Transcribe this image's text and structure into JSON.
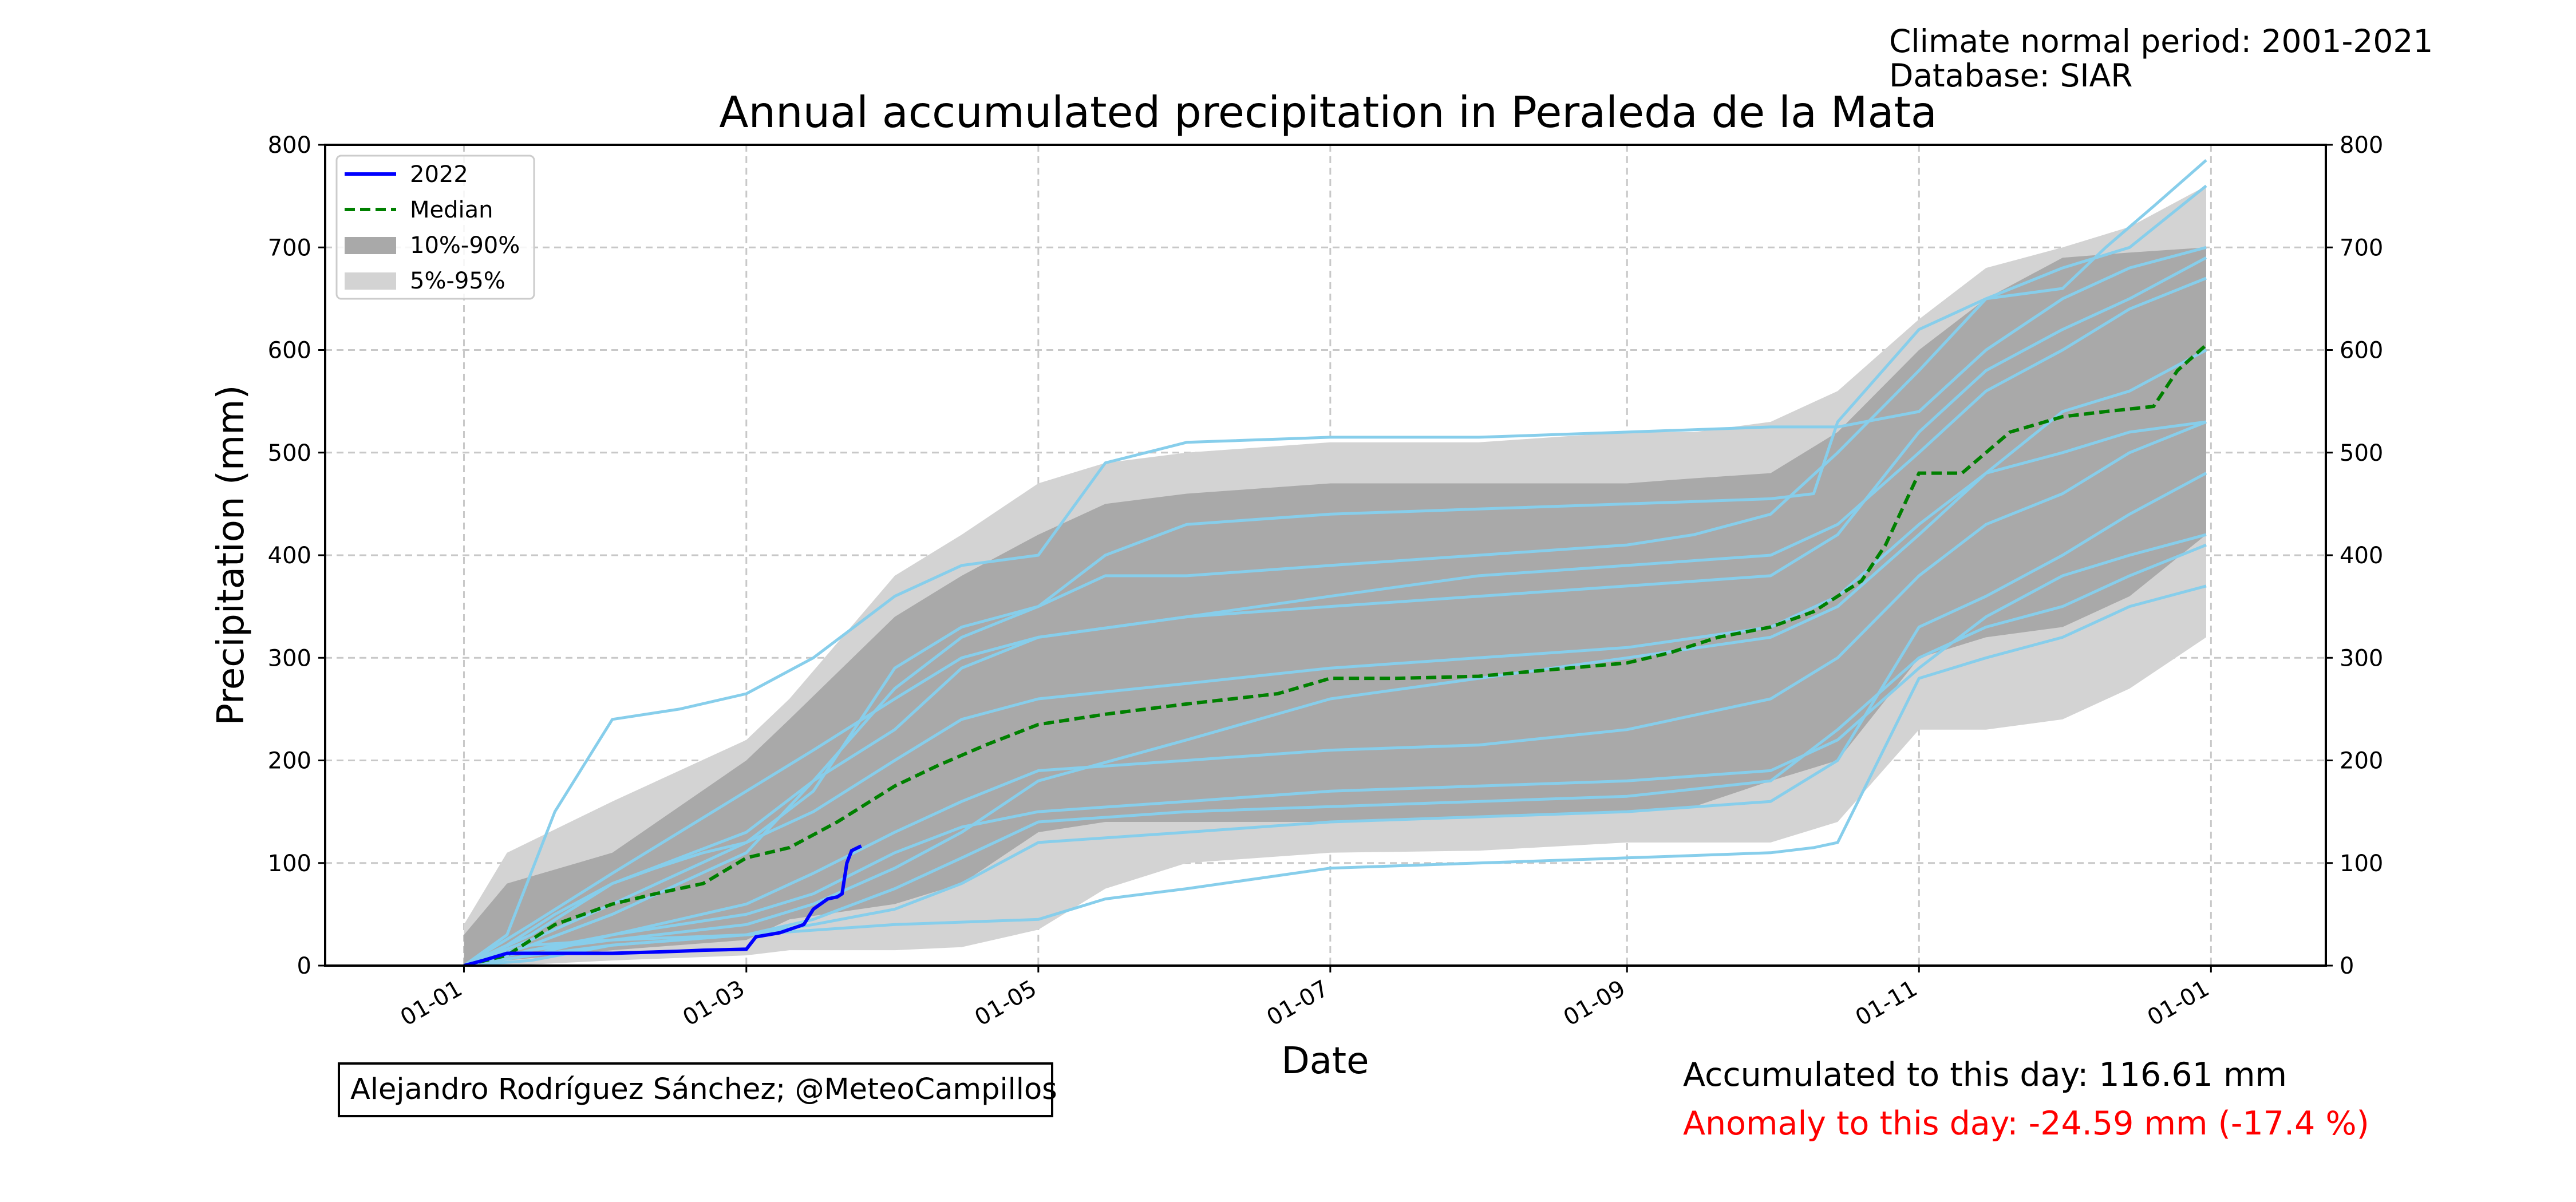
{
  "header": {
    "period": "Climate normal period: 2001-2021",
    "database": "Database: SIAR"
  },
  "credit": "Alejandro Rodríguez Sánchez; @MeteoCampillos",
  "stats": {
    "accumulated": "Accumulated to this day: 116.61 mm",
    "anomaly": "Anomaly to this day: -24.59 mm (-17.4 %)"
  },
  "colors": {
    "current_year": "#0000ff",
    "median": "#008000",
    "band_10_90": "#a9a9a9",
    "band_5_95": "#d3d3d3",
    "historical": "#87ceeb",
    "anomaly": "#ff0000",
    "grid": "#c8c8c8"
  },
  "chart_data": {
    "type": "line",
    "title": "Annual accumulated precipitation in Peraleda de la Mata",
    "xlabel": "Date",
    "ylabel": "Precipitation (mm)",
    "x_range": [
      "12-03",
      "01-25 (next year)"
    ],
    "x_ticks": [
      "01-01",
      "01-03",
      "01-05",
      "01-07",
      "01-09",
      "01-11",
      "01-01"
    ],
    "y_ticks": [
      0,
      100,
      200,
      300,
      400,
      500,
      600,
      700,
      800
    ],
    "ylim": [
      0,
      800
    ],
    "grid": true,
    "grid_style": "dashed",
    "secondary_y_axis": true,
    "legend_position": "upper-left",
    "legend": [
      {
        "label": "2022",
        "style": "line",
        "color": "#0000ff"
      },
      {
        "label": "Median",
        "style": "dashed",
        "color": "#008000"
      },
      {
        "label": "10%-90%",
        "style": "patch",
        "color": "#a9a9a9"
      },
      {
        "label": "5%-95%",
        "style": "patch",
        "color": "#d3d3d3"
      }
    ],
    "current_year": {
      "x": [
        "01-01",
        "01-05",
        "01-10",
        "02-01",
        "02-15",
        "02-20",
        "03-01",
        "03-03",
        "03-08",
        "03-13",
        "03-15",
        "03-18",
        "03-20",
        "03-21",
        "03-22",
        "03-23",
        "03-25"
      ],
      "y": [
        0,
        5,
        12,
        12,
        14,
        15,
        16,
        28,
        32,
        40,
        55,
        65,
        67,
        70,
        100,
        112,
        116.61
      ]
    },
    "median": {
      "x": [
        "01-01",
        "01-10",
        "01-20",
        "02-01",
        "02-10",
        "02-20",
        "03-01",
        "03-10",
        "03-20",
        "04-01",
        "04-10",
        "04-20",
        "05-01",
        "05-15",
        "06-01",
        "06-20",
        "07-01",
        "07-15",
        "08-01",
        "08-15",
        "09-01",
        "09-10",
        "09-20",
        "10-01",
        "10-10",
        "10-20",
        "10-25",
        "11-01",
        "11-10",
        "11-20",
        "12-01",
        "12-10",
        "12-20",
        "12-25",
        "12-31"
      ],
      "y": [
        0,
        10,
        40,
        60,
        70,
        80,
        105,
        115,
        140,
        175,
        195,
        215,
        235,
        245,
        255,
        265,
        280,
        280,
        282,
        288,
        295,
        305,
        320,
        330,
        345,
        375,
        410,
        480,
        480,
        520,
        535,
        540,
        545,
        580,
        605
      ]
    },
    "band_5_95": {
      "x": [
        "01-01",
        "01-10",
        "02-01",
        "03-01",
        "03-10",
        "04-01",
        "04-15",
        "05-01",
        "05-15",
        "06-01",
        "07-01",
        "08-01",
        "09-01",
        "09-15",
        "10-01",
        "10-15",
        "11-01",
        "11-15",
        "12-01",
        "12-15",
        "12-31"
      ],
      "lower": [
        0,
        0,
        5,
        10,
        15,
        15,
        18,
        35,
        75,
        100,
        110,
        112,
        120,
        120,
        120,
        140,
        230,
        230,
        240,
        270,
        320
      ],
      "upper": [
        40,
        110,
        160,
        220,
        260,
        380,
        420,
        470,
        490,
        500,
        510,
        510,
        520,
        520,
        530,
        560,
        630,
        680,
        700,
        720,
        760
      ]
    },
    "band_10_90": {
      "x": [
        "01-01",
        "01-10",
        "02-01",
        "03-01",
        "03-10",
        "04-01",
        "04-15",
        "05-01",
        "05-15",
        "06-01",
        "07-01",
        "08-01",
        "09-01",
        "09-15",
        "10-01",
        "10-15",
        "11-01",
        "11-15",
        "12-01",
        "12-15",
        "12-31"
      ],
      "lower": [
        2,
        5,
        15,
        25,
        45,
        60,
        80,
        130,
        140,
        140,
        140,
        145,
        150,
        155,
        180,
        200,
        300,
        320,
        330,
        360,
        420
      ],
      "upper": [
        30,
        80,
        110,
        200,
        240,
        340,
        380,
        420,
        450,
        460,
        470,
        470,
        470,
        475,
        480,
        520,
        600,
        650,
        690,
        695,
        700
      ]
    },
    "historical_years": [
      {
        "x": [
          "01-01",
          "01-10",
          "01-20",
          "02-01",
          "02-10",
          "02-20",
          "03-01",
          "03-15",
          "04-01",
          "04-15",
          "05-01",
          "05-15",
          "06-01",
          "07-01",
          "08-01",
          "09-01",
          "10-01",
          "10-10",
          "10-15",
          "11-01",
          "11-15",
          "12-01",
          "12-10",
          "12-20",
          "12-31"
        ],
        "y": [
          0,
          20,
          50,
          80,
          95,
          110,
          120,
          170,
          290,
          330,
          350,
          400,
          430,
          440,
          445,
          450,
          455,
          460,
          530,
          620,
          650,
          660,
          700,
          740,
          785
        ]
      },
      {
        "x": [
          "01-01",
          "01-10",
          "01-20",
          "02-01",
          "02-15",
          "03-01",
          "03-15",
          "04-01",
          "04-15",
          "05-01",
          "05-15",
          "06-01",
          "07-01",
          "08-01",
          "09-01",
          "10-01",
          "10-15",
          "11-01",
          "11-15",
          "12-01",
          "12-15",
          "12-31"
        ],
        "y": [
          0,
          30,
          150,
          240,
          250,
          265,
          300,
          360,
          390,
          400,
          490,
          510,
          515,
          515,
          520,
          525,
          525,
          540,
          600,
          650,
          680,
          700
        ]
      },
      {
        "x": [
          "01-01",
          "01-15",
          "02-01",
          "02-15",
          "03-01",
          "03-15",
          "04-01",
          "04-15",
          "05-01",
          "05-15",
          "06-01",
          "07-01",
          "08-01",
          "09-01",
          "09-15",
          "10-01",
          "10-15",
          "11-01",
          "11-15",
          "12-01",
          "12-15",
          "12-31"
        ],
        "y": [
          0,
          20,
          50,
          80,
          110,
          180,
          270,
          320,
          350,
          380,
          380,
          390,
          400,
          410,
          420,
          440,
          500,
          580,
          650,
          680,
          700,
          760
        ]
      },
      {
        "x": [
          "01-01",
          "01-15",
          "02-01",
          "03-01",
          "03-15",
          "04-01",
          "04-15",
          "05-01",
          "06-01",
          "07-01",
          "08-01",
          "09-01",
          "10-01",
          "10-15",
          "11-01",
          "11-15",
          "12-01",
          "12-15",
          "12-31"
        ],
        "y": [
          0,
          15,
          25,
          40,
          60,
          95,
          130,
          180,
          220,
          260,
          280,
          300,
          320,
          350,
          420,
          480,
          500,
          520,
          530
        ]
      },
      {
        "x": [
          "01-01",
          "01-15",
          "02-01",
          "03-01",
          "03-15",
          "04-01",
          "04-15",
          "05-01",
          "06-01",
          "07-01",
          "08-01",
          "09-01",
          "10-01",
          "10-15",
          "11-01",
          "11-15",
          "12-01",
          "12-15",
          "12-31"
        ],
        "y": [
          0,
          5,
          20,
          30,
          40,
          55,
          80,
          120,
          130,
          140,
          145,
          150,
          160,
          200,
          330,
          360,
          400,
          440,
          480
        ]
      },
      {
        "x": [
          "01-01",
          "01-15",
          "02-01",
          "03-01",
          "04-01",
          "05-01",
          "05-15",
          "06-01",
          "07-01",
          "08-01",
          "09-01",
          "10-01",
          "10-10",
          "10-15",
          "11-01",
          "11-15",
          "12-01",
          "12-15",
          "12-31"
        ],
        "y": [
          0,
          20,
          25,
          30,
          40,
          45,
          65,
          75,
          95,
          100,
          105,
          110,
          115,
          120,
          280,
          300,
          320,
          350,
          370
        ]
      },
      {
        "x": [
          "01-01",
          "01-15",
          "02-01",
          "03-01",
          "03-15",
          "04-01",
          "04-15",
          "05-01",
          "06-01",
          "07-01",
          "08-01",
          "09-01",
          "10-01",
          "10-15",
          "11-01",
          "11-15",
          "12-01",
          "12-15",
          "12-31"
        ],
        "y": [
          0,
          25,
          60,
          120,
          150,
          200,
          240,
          260,
          275,
          290,
          300,
          310,
          330,
          360,
          430,
          480,
          540,
          560,
          600
        ]
      },
      {
        "x": [
          "01-01",
          "01-15",
          "02-01",
          "03-01",
          "03-15",
          "04-01",
          "04-15",
          "05-01",
          "06-01",
          "07-01",
          "08-01",
          "09-01",
          "10-01",
          "10-15",
          "11-01",
          "11-15",
          "12-01",
          "12-15",
          "12-31"
        ],
        "y": [
          0,
          10,
          30,
          60,
          90,
          130,
          160,
          190,
          200,
          210,
          215,
          230,
          260,
          300,
          380,
          430,
          460,
          500,
          530
        ]
      },
      {
        "x": [
          "01-01",
          "01-15",
          "02-01",
          "03-01",
          "03-15",
          "04-01",
          "04-15",
          "05-01",
          "06-01",
          "07-01",
          "08-01",
          "09-01",
          "10-01",
          "10-15",
          "11-01",
          "11-15",
          "12-01",
          "12-15",
          "12-31"
        ],
        "y": [
          0,
          15,
          30,
          50,
          70,
          110,
          135,
          150,
          160,
          170,
          175,
          180,
          190,
          220,
          290,
          340,
          380,
          400,
          420
        ]
      },
      {
        "x": [
          "01-01",
          "01-15",
          "02-01",
          "03-01",
          "03-15",
          "04-01",
          "04-15",
          "05-01",
          "06-01",
          "07-01",
          "08-01",
          "09-01",
          "10-01",
          "10-15",
          "11-01",
          "11-15",
          "12-01",
          "12-15",
          "12-31"
        ],
        "y": [
          0,
          30,
          80,
          130,
          180,
          230,
          290,
          320,
          340,
          360,
          380,
          390,
          400,
          430,
          500,
          560,
          600,
          640,
          670
        ]
      },
      {
        "x": [
          "01-01",
          "01-15",
          "02-01",
          "03-01",
          "03-15",
          "04-01",
          "04-15",
          "05-01",
          "06-01",
          "07-01",
          "08-01",
          "09-01",
          "10-01",
          "10-15",
          "11-01",
          "11-15",
          "12-01",
          "12-15",
          "12-31"
        ],
        "y": [
          0,
          10,
          20,
          30,
          45,
          75,
          105,
          140,
          150,
          155,
          160,
          165,
          180,
          230,
          300,
          330,
          350,
          380,
          410
        ]
      },
      {
        "x": [
          "01-01",
          "01-15",
          "02-01",
          "03-01",
          "03-15",
          "04-01",
          "04-15",
          "05-01",
          "06-01",
          "07-01",
          "08-01",
          "09-01",
          "10-01",
          "10-15",
          "11-01",
          "11-15",
          "12-01",
          "12-15",
          "12-31"
        ],
        "y": [
          0,
          40,
          90,
          170,
          210,
          260,
          300,
          320,
          340,
          350,
          360,
          370,
          380,
          420,
          520,
          580,
          620,
          650,
          690
        ]
      }
    ]
  }
}
